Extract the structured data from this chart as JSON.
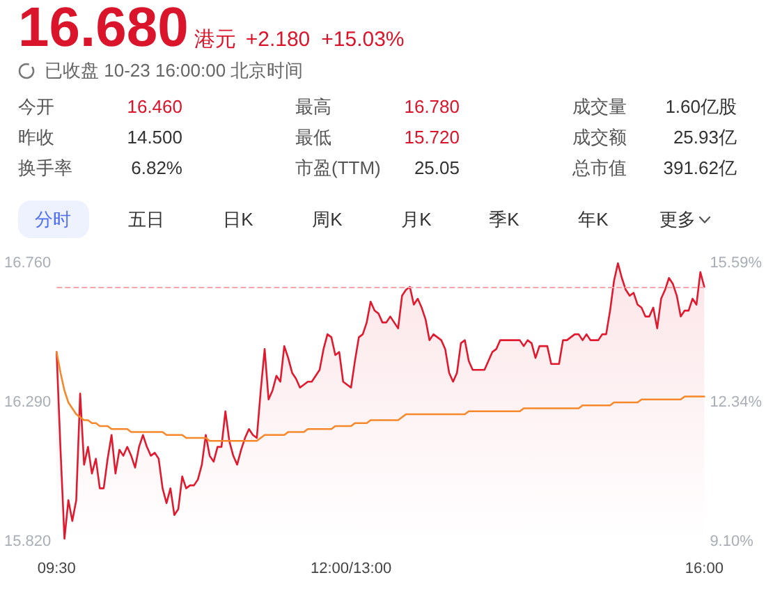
{
  "chart_data": {
    "type": "line",
    "title": "16.680",
    "subtitle": "已收盘 10-23 16:00:00 北京时间",
    "annotations": [
      "港元",
      "+2.180",
      "+15.03%",
      "今开",
      "16.460",
      "最高",
      "16.780",
      "成交量",
      "1.60亿股",
      "昨收",
      "14.500",
      "最低",
      "15.720",
      "成交额",
      "25.93亿",
      "换手率",
      "6.82%",
      "市盈(TTM)",
      "25.05",
      "总市值",
      "391.62亿",
      "分时",
      "五日",
      "日K",
      "周K",
      "月K",
      "季K",
      "年K",
      "更多"
    ],
    "categories": [
      "09:30",
      null,
      null,
      null,
      null,
      null,
      null,
      null,
      null,
      null,
      null,
      null,
      null,
      null,
      null,
      null,
      null,
      null,
      null,
      null,
      null,
      null,
      null,
      null,
      null,
      null,
      null,
      null,
      null,
      null,
      null,
      null,
      null,
      null,
      null,
      null,
      null,
      null,
      null,
      null,
      null,
      null,
      null,
      null,
      null,
      null,
      null,
      null,
      null,
      null,
      null,
      null,
      null,
      null,
      null,
      null,
      null,
      null,
      null,
      null,
      null,
      null,
      null,
      null,
      null,
      null,
      null,
      null,
      null,
      null,
      null,
      null,
      null,
      null,
      null,
      "12:00/13:00",
      null,
      null,
      null,
      null,
      null,
      null,
      null,
      null,
      null,
      null,
      null,
      null,
      null,
      null,
      null,
      null,
      null,
      null,
      null,
      null,
      null,
      null,
      null,
      null,
      null,
      null,
      null,
      null,
      null,
      null,
      null,
      null,
      null,
      null,
      null,
      null,
      null,
      null,
      null,
      null,
      null,
      null,
      null,
      null,
      null,
      null,
      null,
      null,
      null,
      null,
      null,
      null,
      null,
      null,
      null,
      null,
      null,
      null,
      null,
      null,
      null,
      null,
      null,
      null,
      null,
      null,
      null,
      null,
      null,
      null,
      null,
      null,
      null,
      null,
      null,
      null,
      null,
      null,
      null,
      null,
      null,
      null,
      null,
      null,
      null,
      null,
      null,
      null,
      null,
      "16:00"
    ],
    "series": [
      {
        "type": "area",
        "color": "#e0192e",
        "values": [
          16.46,
          16.13,
          15.83,
          15.96,
          15.89,
          15.96,
          16.32,
          16.08,
          16.14,
          16.05,
          16.1,
          16.0,
          16.0,
          16.1,
          16.18,
          16.05,
          16.13,
          16.11,
          16.14,
          16.11,
          16.07,
          16.14,
          16.18,
          16.14,
          16.11,
          16.12,
          16.1,
          16.0,
          15.95,
          16.0,
          15.91,
          15.93,
          16.04,
          16.0,
          16.01,
          16.01,
          16.03,
          16.08,
          16.18,
          16.11,
          16.09,
          16.14,
          16.14,
          16.26,
          16.16,
          16.11,
          16.08,
          16.13,
          16.17,
          16.2,
          16.18,
          16.17,
          16.33,
          16.47,
          16.3,
          16.33,
          16.38,
          16.36,
          16.48,
          16.44,
          16.39,
          16.37,
          16.34,
          16.35,
          16.36,
          16.36,
          16.38,
          16.4,
          16.47,
          16.52,
          16.51,
          16.45,
          16.46,
          16.36,
          16.35,
          16.34,
          16.43,
          16.51,
          16.52,
          16.56,
          16.63,
          16.6,
          16.59,
          16.56,
          16.56,
          16.58,
          16.56,
          16.54,
          16.65,
          16.67,
          16.68,
          16.62,
          16.64,
          16.61,
          16.57,
          16.5,
          16.52,
          16.51,
          16.5,
          16.47,
          16.39,
          16.36,
          16.39,
          16.49,
          16.5,
          16.43,
          16.4,
          16.4,
          16.4,
          16.4,
          16.43,
          16.46,
          16.47,
          16.5,
          16.5,
          16.5,
          16.5,
          16.5,
          16.5,
          16.48,
          16.5,
          16.49,
          16.44,
          16.48,
          16.48,
          16.48,
          16.42,
          16.42,
          16.42,
          16.5,
          16.5,
          16.51,
          16.52,
          16.52,
          16.5,
          16.52,
          16.5,
          16.5,
          16.5,
          16.52,
          16.52,
          16.6,
          16.7,
          16.76,
          16.71,
          16.67,
          16.65,
          16.66,
          16.62,
          16.61,
          16.58,
          16.58,
          16.61,
          16.54,
          16.64,
          16.67,
          16.71,
          16.69,
          16.65,
          16.58,
          16.6,
          16.6,
          16.64,
          16.62,
          16.73,
          16.68
        ]
      },
      {
        "color": "#f5882a",
        "values": [
          16.46,
          16.39,
          16.33,
          16.29,
          16.27,
          16.25,
          16.24,
          16.23,
          16.23,
          16.22,
          16.22,
          16.21,
          16.21,
          16.21,
          16.2,
          16.2,
          16.2,
          16.2,
          16.2,
          16.19,
          16.19,
          16.19,
          16.19,
          16.19,
          16.19,
          16.19,
          16.19,
          16.19,
          16.18,
          16.18,
          16.18,
          16.18,
          16.18,
          16.17,
          16.17,
          16.17,
          16.17,
          16.17,
          16.17,
          16.16,
          16.16,
          16.16,
          16.16,
          16.16,
          16.16,
          16.16,
          16.16,
          16.16,
          16.16,
          16.16,
          16.16,
          16.16,
          16.17,
          16.18,
          16.18,
          16.18,
          16.18,
          16.18,
          16.18,
          16.19,
          16.19,
          16.19,
          16.19,
          16.19,
          16.2,
          16.2,
          16.2,
          16.2,
          16.2,
          16.2,
          16.2,
          16.21,
          16.21,
          16.21,
          16.21,
          16.21,
          16.22,
          16.22,
          16.22,
          16.22,
          16.23,
          16.23,
          16.23,
          16.23,
          16.23,
          16.23,
          16.23,
          16.23,
          16.24,
          16.25,
          16.25,
          16.25,
          16.25,
          16.25,
          16.25,
          16.25,
          16.25,
          16.25,
          16.25,
          16.25,
          16.25,
          16.25,
          16.25,
          16.25,
          16.25,
          16.26,
          16.26,
          16.26,
          16.26,
          16.26,
          16.26,
          16.26,
          16.26,
          16.26,
          16.26,
          16.26,
          16.26,
          16.26,
          16.26,
          16.27,
          16.27,
          16.27,
          16.27,
          16.27,
          16.27,
          16.27,
          16.27,
          16.27,
          16.27,
          16.27,
          16.27,
          16.27,
          16.27,
          16.27,
          16.28,
          16.28,
          16.28,
          16.28,
          16.28,
          16.28,
          16.28,
          16.28,
          16.29,
          16.29,
          16.29,
          16.29,
          16.29,
          16.29,
          16.29,
          16.3,
          16.3,
          16.3,
          16.3,
          16.3,
          16.3,
          16.3,
          16.3,
          16.3,
          16.3,
          16.3,
          16.31,
          16.31,
          16.31,
          16.31,
          16.31,
          16.31
        ]
      }
    ],
    "ylim": [
      15.82,
      16.76
    ],
    "yticks": [
      {
        "value": 15.82,
        "label": "15.820"
      },
      {
        "value": 16.29,
        "label": "16.290"
      },
      {
        "value": 16.76,
        "label": "16.760"
      }
    ],
    "y2lim": [
      9.1,
      15.59
    ],
    "y2ticks": [
      {
        "value": 9.1,
        "label": "9.10%"
      },
      {
        "value": 12.34,
        "label": "12.34%"
      },
      {
        "value": 15.59,
        "label": "15.59%"
      }
    ],
    "ref_lines": [
      {
        "axis": "y",
        "value": 16.68,
        "color": "#f6a5aa",
        "line_style": "dashed"
      }
    ]
  }
}
